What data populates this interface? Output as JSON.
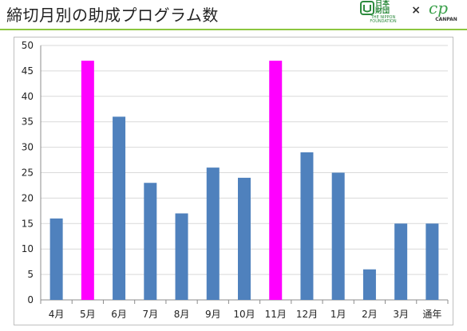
{
  "header": {
    "title": "締切月別の助成プログラム数",
    "logo_np_text": "日本\n財団",
    "logo_np_sub": "THE NIPPON FOUNDATION",
    "logo_separator": "×",
    "logo_cp_text": "cp",
    "logo_cp_sub": "CANPAN"
  },
  "colors": {
    "bar_default": "#4f81bd",
    "bar_highlight": "#ff00ff",
    "title_rule": "#8cc63f",
    "gridline": "#d9d9d9"
  },
  "chart_data": {
    "type": "bar",
    "title": "",
    "xlabel": "",
    "ylabel": "",
    "categories": [
      "4月",
      "5月",
      "6月",
      "7月",
      "8月",
      "9月",
      "10月",
      "11月",
      "12月",
      "1月",
      "2月",
      "3月",
      "通年"
    ],
    "values": [
      16,
      47,
      36,
      23,
      17,
      26,
      24,
      47,
      29,
      25,
      6,
      15,
      15
    ],
    "highlighted": [
      "5月",
      "11月"
    ],
    "ylim": [
      0,
      50
    ],
    "yticks": [
      0,
      5,
      10,
      15,
      20,
      25,
      30,
      35,
      40,
      45,
      50
    ],
    "grid": true,
    "legend": false
  }
}
